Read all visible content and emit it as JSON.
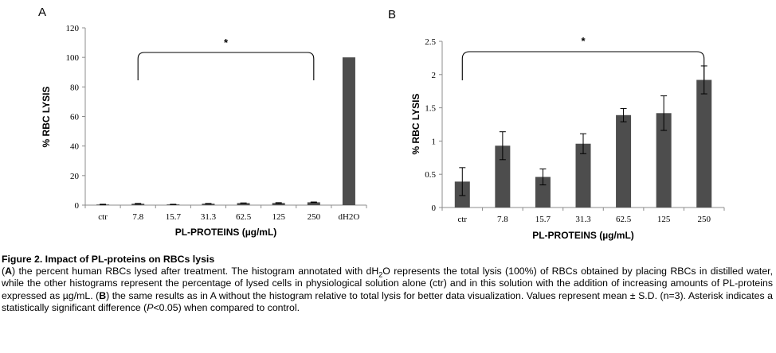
{
  "chart_data": [
    {
      "type": "bar",
      "panel": "A",
      "categories": [
        "ctr",
        "7.8",
        "15.7",
        "31.3",
        "62.5",
        "125",
        "250",
        "dH2O"
      ],
      "values": [
        0.4,
        0.93,
        0.46,
        0.96,
        1.39,
        1.42,
        1.92,
        100
      ],
      "errors": [
        0.2,
        0.2,
        0.12,
        0.15,
        0.1,
        0.25,
        0.2,
        0
      ],
      "xlabel": "PL-PROTEINS (µg/mL)",
      "ylabel": "% RBC LYSIS",
      "ylim": [
        0,
        120
      ],
      "yticks": [
        0,
        20,
        40,
        60,
        80,
        100,
        120
      ],
      "grid": false,
      "color": "#4d4d4d",
      "significance": {
        "label": "*",
        "from": "7.8",
        "to": "250"
      }
    },
    {
      "type": "bar",
      "panel": "B",
      "categories": [
        "ctr",
        "7.8",
        "15.7",
        "31.3",
        "62.5",
        "125",
        "250"
      ],
      "values": [
        0.39,
        0.93,
        0.46,
        0.96,
        1.39,
        1.42,
        1.92
      ],
      "errors": [
        0.21,
        0.21,
        0.12,
        0.15,
        0.1,
        0.26,
        0.21
      ],
      "xlabel": "PL-PROTEINS (µg/mL)",
      "ylabel": "% RBC LYSIS",
      "ylim": [
        0,
        2.5
      ],
      "yticks": [
        "0",
        "0.5",
        "1",
        "1.5",
        "2",
        "2.5"
      ],
      "grid": false,
      "color": "#4d4d4d",
      "significance": {
        "label": "*",
        "from": "ctr",
        "to": "250"
      }
    }
  ],
  "caption": {
    "title": "Figure 2. Impact of PL-proteins on RBCs lysis",
    "p_open": "(",
    "letter_a": "A",
    "p_a1": ") the percent human RBCs lysed after treatment. The histogram annotated with dH",
    "sub": "2",
    "p_a2": "O represents the total lysis (100%) of RBCs obtained by placing RBCs in distilled water, while the other histograms represent the percentage of lysed cells in physiological solution alone (ctr) and in this solution with the addition of increasing amounts of PL-proteins expressed as µg/mL. (",
    "letter_b": "B",
    "p_b": ") the same results as in A without the histogram relative to total lysis for better data visualization. Values represent mean ± S.D. (n=3). Asterisk indicates a statistically significant difference (",
    "p_italic": "P",
    "p_end": "<0.05) when compared to control."
  }
}
